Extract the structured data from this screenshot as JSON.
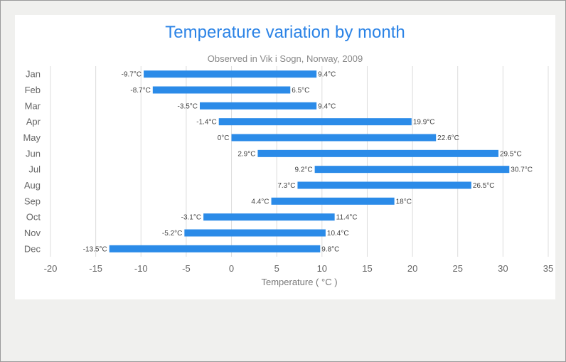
{
  "chart_data": {
    "type": "bar",
    "orientation": "horizontal",
    "title": "Temperature variation by month",
    "subtitle": "Observed in Vik i Sogn, Norway, 2009",
    "xlabel": "Temperature ( °C )",
    "ylabel": "",
    "categories": [
      "Jan",
      "Feb",
      "Mar",
      "Apr",
      "May",
      "Jun",
      "Jul",
      "Aug",
      "Sep",
      "Oct",
      "Nov",
      "Dec"
    ],
    "series": [
      {
        "low": [
          -9.7,
          -8.7,
          -3.5,
          -1.4,
          0,
          2.9,
          9.2,
          7.3,
          4.4,
          -3.1,
          -5.2,
          -13.5
        ],
        "high": [
          9.4,
          6.5,
          9.4,
          19.9,
          22.6,
          29.5,
          30.7,
          26.5,
          18,
          11.4,
          10.4,
          9.8
        ]
      }
    ],
    "low_labels": [
      "-9.7°C",
      "-8.7°C",
      "-3.5°C",
      "-1.4°C",
      "0°C",
      "2.9°C",
      "9.2°C",
      "7.3°C",
      "4.4°C",
      "-3.1°C",
      "-5.2°C",
      "-13.5°C"
    ],
    "high_labels": [
      "9.4°C",
      "6.5°C",
      "9.4°C",
      "19.9°C",
      "22.6°C",
      "29.5°C",
      "30.7°C",
      "26.5°C",
      "18°C",
      "11.4°C",
      "10.4°C",
      "9.8°C"
    ],
    "xlim": [
      -20,
      35
    ],
    "xticks": [
      -20,
      -15,
      -10,
      -5,
      0,
      5,
      10,
      15,
      20,
      25,
      30,
      35
    ],
    "xtick_labels": [
      "-20",
      "-15",
      "-10",
      "-5",
      "0",
      "5",
      "10",
      "15",
      "20",
      "25",
      "30",
      "35"
    ],
    "grid": true,
    "legend": "none",
    "bar_color": "#2b8be8",
    "title_color": "#2b83e6"
  }
}
